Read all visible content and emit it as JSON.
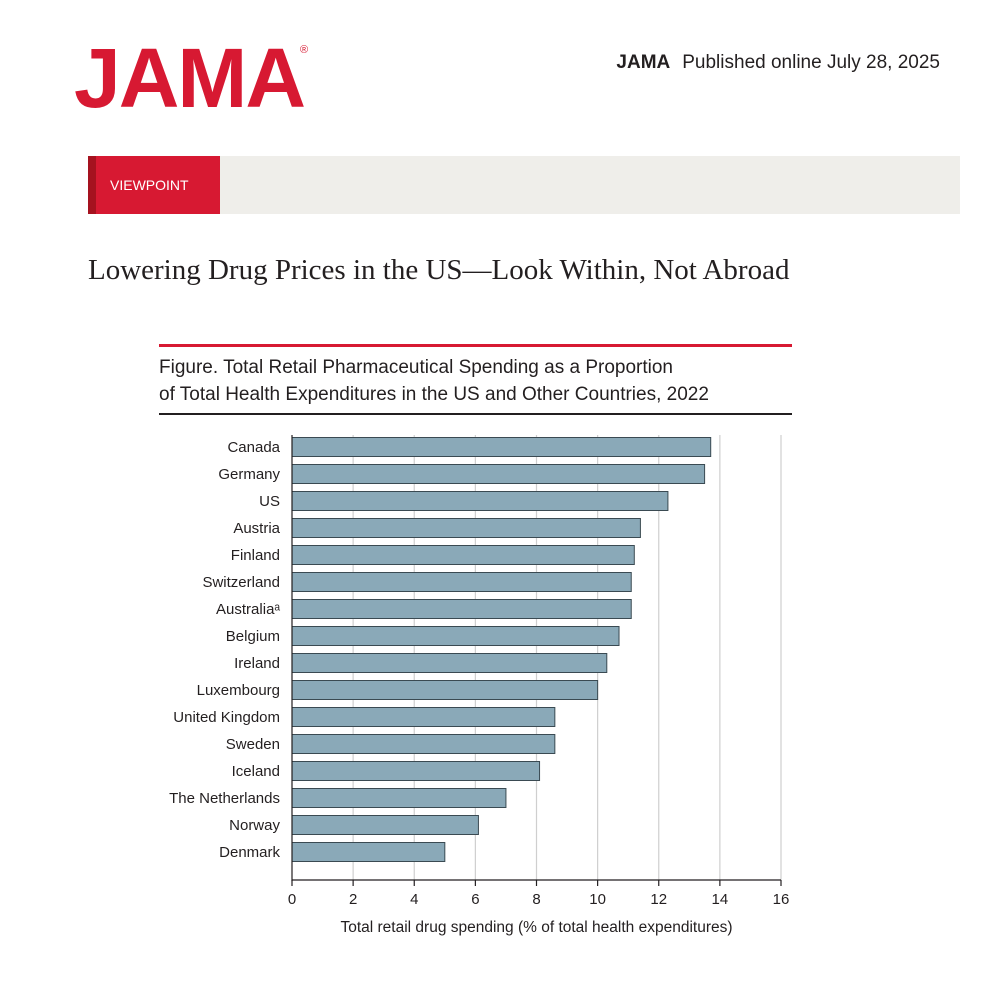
{
  "header": {
    "logo_text": "JAMA",
    "logo_mark": "®",
    "journal": "JAMA",
    "published": "Published online July  28, 2025",
    "brand_color": "#d71932"
  },
  "section": {
    "label": "VIEWPOINT"
  },
  "article": {
    "title": "Lowering Drug Prices in the US—Look Within, Not Abroad"
  },
  "figure": {
    "title_line1": "Figure. Total Retail Pharmaceutical Spending as a Proportion",
    "title_line2": "of Total Health Expenditures in the US and Other Countries, 2022"
  },
  "chart_data": {
    "type": "bar",
    "orientation": "horizontal",
    "categories": [
      "Canada",
      "Germany",
      "US",
      "Austria",
      "Finland",
      "Switzerland",
      "Australiaᵃ",
      "Belgium",
      "Ireland",
      "Luxembourg",
      "United Kingdom",
      "Sweden",
      "Iceland",
      "The Netherlands",
      "Norway",
      "Denmark"
    ],
    "values": [
      13.7,
      13.5,
      12.3,
      11.4,
      11.2,
      11.1,
      11.1,
      10.7,
      10.3,
      10.0,
      8.6,
      8.6,
      8.1,
      7.0,
      6.1,
      5.0
    ],
    "xlabel": "Total retail drug spending (% of total health expenditures)",
    "ylabel": "",
    "xlim": [
      0,
      16
    ],
    "xticks": [
      0,
      2,
      4,
      6,
      8,
      10,
      12,
      14,
      16
    ],
    "grid": "vertical",
    "bar_color": "#8aa9b8",
    "bar_edge_color": "#3a4a52"
  }
}
